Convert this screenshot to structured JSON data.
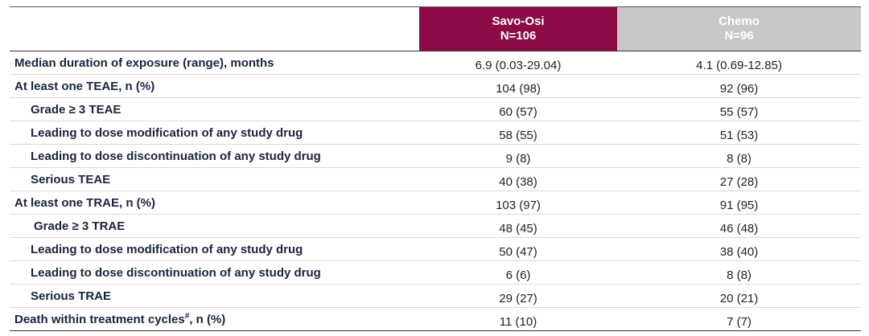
{
  "header": {
    "col1_name": "Savo-Osi",
    "col1_n": "N=106",
    "col2_name": "Chemo",
    "col2_n": "N=96"
  },
  "rows": [
    {
      "label": "Median duration of exposure (range), months",
      "savo": "6.9 (0.03-29.04)",
      "chemo": "4.1 (0.69-12.85)"
    },
    {
      "label": "At least one TEAE, n (%)",
      "savo": "104 (98)",
      "chemo": "92 (96)"
    },
    {
      "label": "Grade ≥ 3 TEAE",
      "savo": "60 (57)",
      "chemo": "55 (57)"
    },
    {
      "label": "Leading to dose modification of any study drug",
      "savo": "58 (55)",
      "chemo": "51 (53)"
    },
    {
      "label": "Leading to dose discontinuation of any study drug",
      "savo": "9 (8)",
      "chemo": "8 (8)"
    },
    {
      "label": "Serious TEAE",
      "savo": "40 (38)",
      "chemo": "27 (28)"
    },
    {
      "label": "At least one TRAE, n (%)",
      "savo": "103 (97)",
      "chemo": "91 (95)"
    },
    {
      "label": "Grade ≥ 3 TRAE",
      "savo": "48 (45)",
      "chemo": "46 (48)"
    },
    {
      "label": "Leading to dose modification of any study drug",
      "savo": "50 (47)",
      "chemo": "38 (40)"
    },
    {
      "label": "Leading to dose discontinuation of any study drug",
      "savo": "6 (6)",
      "chemo": "8 (8)"
    },
    {
      "label": "Serious TRAE",
      "savo": "29 (27)",
      "chemo": "20 (21)"
    },
    {
      "label": "Death within treatment cycles",
      "label_sup": "#",
      "label_suffix": ", n (%)",
      "savo": "11 (10)",
      "chemo": "7 (7)"
    }
  ]
}
